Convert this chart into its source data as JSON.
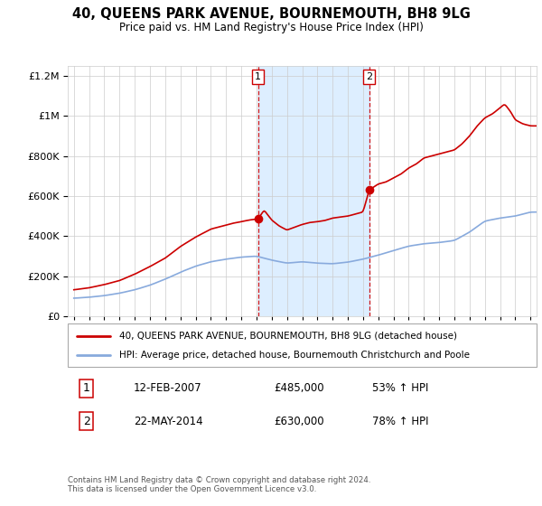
{
  "title": "40, QUEENS PARK AVENUE, BOURNEMOUTH, BH8 9LG",
  "subtitle": "Price paid vs. HM Land Registry's House Price Index (HPI)",
  "red_label": "40, QUEENS PARK AVENUE, BOURNEMOUTH, BH8 9LG (detached house)",
  "blue_label": "HPI: Average price, detached house, Bournemouth Christchurch and Poole",
  "footnote": "Contains HM Land Registry data © Crown copyright and database right 2024.\nThis data is licensed under the Open Government Licence v3.0.",
  "sale1_year": 2007.1,
  "sale1_date": "12-FEB-2007",
  "sale1_price": "£485,000",
  "sale1_pct": "53% ↑ HPI",
  "sale2_year": 2014.4,
  "sale2_date": "22-MAY-2014",
  "sale2_price": "£630,000",
  "sale2_pct": "78% ↑ HPI",
  "red_color": "#cc0000",
  "blue_color": "#88aadd",
  "shade_color": "#ddeeff",
  "ylim": [
    0,
    1250000
  ],
  "xlim": [
    1994.6,
    2025.4
  ]
}
